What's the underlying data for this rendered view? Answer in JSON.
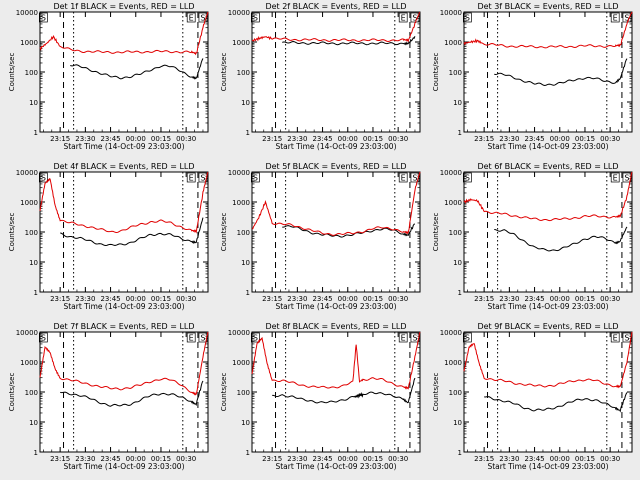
{
  "figure": {
    "x_tick_labels": [
      "23:15",
      "23:30",
      "23:45",
      "00:00",
      "00:15",
      "00:30"
    ],
    "x_axis_title": "Start Time (14-Oct-09 23:03:00)",
    "y_axis_title": "Counts/sec",
    "y_tick_labels": [
      "1",
      "10",
      "100",
      "1000",
      "10000"
    ],
    "series_colors": {
      "events": "#000000",
      "lld": "#e00000"
    },
    "marker_labels": [
      "S",
      "E",
      "S"
    ]
  },
  "chart_data": [
    {
      "type": "line",
      "title": "Det 1f BLACK = Events, RED = LLD",
      "xlabel": "Start Time (14-Oct-09 23:03:00)",
      "ylabel": "Counts/sec",
      "ylim": [
        1,
        10000
      ],
      "yscale": "log",
      "x_minutes": [
        0,
        4,
        8,
        12,
        18,
        24,
        30,
        36,
        42,
        48,
        54,
        60,
        66,
        72,
        78,
        84,
        90,
        93,
        97,
        100
      ],
      "series": [
        {
          "name": "Events",
          "values": [
            null,
            null,
            null,
            null,
            170,
            150,
            120,
            90,
            70,
            65,
            70,
            85,
            120,
            160,
            150,
            110,
            70,
            60,
            300,
            null
          ]
        },
        {
          "name": "LLD",
          "values": [
            600,
            900,
            1500,
            700,
            550,
            500,
            480,
            460,
            460,
            460,
            460,
            470,
            480,
            480,
            480,
            470,
            450,
            400,
            3000,
            10000
          ]
        }
      ]
    },
    {
      "type": "line",
      "title": "Det 2f BLACK = Events, RED = LLD",
      "xlabel": "Start Time (14-Oct-09 23:03:00)",
      "ylabel": "Counts/sec",
      "ylim": [
        1,
        10000
      ],
      "yscale": "log",
      "x_minutes": [
        0,
        4,
        8,
        12,
        18,
        24,
        30,
        36,
        42,
        48,
        54,
        60,
        66,
        72,
        78,
        84,
        90,
        93,
        97,
        100
      ],
      "series": [
        {
          "name": "Events",
          "values": [
            null,
            null,
            null,
            null,
            950,
            940,
            930,
            920,
            910,
            900,
            900,
            900,
            900,
            900,
            900,
            900,
            900,
            880,
            1500,
            null
          ]
        },
        {
          "name": "LLD",
          "values": [
            1100,
            1300,
            1500,
            1300,
            1250,
            1200,
            1200,
            1180,
            1170,
            1160,
            1150,
            1150,
            1150,
            1150,
            1150,
            1150,
            1150,
            1100,
            4000,
            10000
          ]
        }
      ]
    },
    {
      "type": "line",
      "title": "Det 3f BLACK = Events, RED = LLD",
      "xlabel": "Start Time (14-Oct-09 23:03:00)",
      "ylabel": "Counts/sec",
      "ylim": [
        1,
        10000
      ],
      "yscale": "log",
      "x_minutes": [
        0,
        4,
        8,
        12,
        18,
        24,
        30,
        36,
        42,
        48,
        54,
        60,
        66,
        72,
        78,
        84,
        90,
        93,
        97,
        100
      ],
      "series": [
        {
          "name": "Events",
          "values": [
            null,
            null,
            null,
            null,
            90,
            80,
            65,
            50,
            40,
            38,
            40,
            45,
            55,
            65,
            60,
            50,
            45,
            60,
            300,
            null
          ]
        },
        {
          "name": "LLD",
          "values": [
            900,
            1000,
            1100,
            850,
            800,
            750,
            720,
            700,
            700,
            690,
            690,
            700,
            720,
            740,
            740,
            730,
            720,
            750,
            4000,
            10000
          ]
        }
      ]
    },
    {
      "type": "line",
      "title": "Det 4f BLACK = Events, RED = LLD",
      "xlabel": "Start Time (14-Oct-09 23:03:00)",
      "ylabel": "Counts/sec",
      "ylim": [
        1,
        10000
      ],
      "yscale": "log",
      "x_minutes": [
        0,
        3,
        6,
        9,
        12,
        18,
        24,
        30,
        36,
        42,
        48,
        54,
        60,
        66,
        72,
        78,
        84,
        90,
        93,
        97,
        100
      ],
      "series": [
        {
          "name": "Events",
          "values": [
            null,
            null,
            null,
            null,
            90,
            70,
            60,
            50,
            40,
            35,
            38,
            45,
            60,
            80,
            90,
            80,
            60,
            50,
            45,
            300,
            null
          ]
        },
        {
          "name": "LLD",
          "values": [
            500,
            4000,
            6000,
            800,
            250,
            200,
            170,
            150,
            120,
            100,
            110,
            140,
            180,
            220,
            230,
            200,
            150,
            110,
            100,
            2000,
            10000
          ]
        }
      ]
    },
    {
      "type": "line",
      "title": "Det 5f BLACK = Events, RED = LLD",
      "xlabel": "Start Time (14-Oct-09 23:03:00)",
      "ylabel": "Counts/sec",
      "ylim": [
        1,
        10000
      ],
      "yscale": "log",
      "x_minutes": [
        0,
        4,
        8,
        12,
        18,
        24,
        30,
        36,
        42,
        48,
        54,
        60,
        66,
        72,
        78,
        84,
        90,
        93,
        97,
        100
      ],
      "series": [
        {
          "name": "Events",
          "values": [
            null,
            null,
            null,
            null,
            160,
            150,
            120,
            95,
            80,
            75,
            75,
            80,
            95,
            115,
            125,
            115,
            90,
            80,
            200,
            null
          ]
        },
        {
          "name": "LLD",
          "values": [
            120,
            300,
            1000,
            200,
            180,
            170,
            140,
            110,
            90,
            85,
            85,
            90,
            105,
            130,
            140,
            130,
            100,
            90,
            2500,
            10000
          ]
        }
      ]
    },
    {
      "type": "line",
      "title": "Det 6f BLACK = Events, RED = LLD",
      "xlabel": "Start Time (14-Oct-09 23:03:00)",
      "ylabel": "Counts/sec",
      "ylim": [
        1,
        10000
      ],
      "yscale": "log",
      "x_minutes": [
        0,
        4,
        8,
        12,
        18,
        24,
        30,
        36,
        42,
        48,
        54,
        60,
        66,
        72,
        78,
        84,
        90,
        93,
        97,
        100
      ],
      "series": [
        {
          "name": "Events",
          "values": [
            null,
            null,
            null,
            null,
            120,
            110,
            80,
            50,
            30,
            25,
            25,
            30,
            40,
            60,
            70,
            60,
            45,
            50,
            150,
            null
          ]
        },
        {
          "name": "LLD",
          "values": [
            1000,
            1200,
            1100,
            500,
            420,
            400,
            350,
            300,
            270,
            260,
            260,
            270,
            300,
            330,
            340,
            330,
            310,
            330,
            1500,
            10000
          ]
        }
      ]
    },
    {
      "type": "line",
      "title": "Det 7f BLACK = Events, RED = LLD",
      "xlabel": "Start Time (14-Oct-09 23:03:00)",
      "ylabel": "Counts/sec",
      "ylim": [
        1,
        10000
      ],
      "yscale": "log",
      "x_minutes": [
        0,
        3,
        6,
        9,
        12,
        18,
        24,
        30,
        36,
        42,
        48,
        54,
        60,
        66,
        72,
        78,
        84,
        90,
        93,
        97,
        100
      ],
      "series": [
        {
          "name": "Events",
          "values": [
            null,
            null,
            null,
            null,
            100,
            90,
            75,
            60,
            45,
            35,
            35,
            40,
            55,
            75,
            90,
            85,
            65,
            50,
            40,
            250,
            null
          ]
        },
        {
          "name": "LLD",
          "values": [
            300,
            3000,
            2000,
            600,
            300,
            250,
            210,
            180,
            150,
            130,
            130,
            140,
            170,
            230,
            270,
            250,
            180,
            100,
            80,
            1500,
            10000
          ]
        }
      ]
    },
    {
      "type": "line",
      "title": "Det 8f BLACK = Events, RED = LLD",
      "xlabel": "Start Time (14-Oct-09 23:03:00)",
      "ylabel": "Counts/sec",
      "ylim": [
        1,
        10000
      ],
      "yscale": "log",
      "x_minutes": [
        0,
        3,
        6,
        9,
        12,
        18,
        24,
        30,
        36,
        42,
        48,
        54,
        60,
        62,
        64,
        66,
        72,
        78,
        84,
        90,
        93,
        97,
        100
      ],
      "series": [
        {
          "name": "Events",
          "values": [
            null,
            null,
            null,
            null,
            70,
            80,
            70,
            55,
            50,
            45,
            45,
            55,
            70,
            70,
            80,
            80,
            100,
            90,
            70,
            60,
            45,
            300,
            null
          ]
        },
        {
          "name": "LLD",
          "values": [
            400,
            4000,
            6000,
            900,
            250,
            240,
            200,
            170,
            150,
            140,
            145,
            160,
            210,
            4000,
            220,
            260,
            290,
            250,
            190,
            150,
            130,
            1500,
            10000
          ]
        }
      ]
    },
    {
      "type": "line",
      "title": "Det 9f BLACK = Events, RED = LLD",
      "xlabel": "Start Time (14-Oct-09 23:03:00)",
      "ylabel": "Counts/sec",
      "ylim": [
        1,
        10000
      ],
      "yscale": "log",
      "x_minutes": [
        0,
        3,
        6,
        9,
        12,
        18,
        24,
        30,
        36,
        42,
        48,
        54,
        60,
        66,
        72,
        78,
        84,
        90,
        93,
        97,
        100
      ],
      "series": [
        {
          "name": "Events",
          "values": [
            null,
            null,
            null,
            null,
            70,
            60,
            50,
            40,
            30,
            25,
            25,
            30,
            40,
            50,
            60,
            55,
            40,
            30,
            25,
            100,
            null
          ]
        },
        {
          "name": "LLD",
          "values": [
            500,
            3000,
            4000,
            900,
            300,
            260,
            230,
            200,
            180,
            160,
            160,
            170,
            200,
            240,
            260,
            240,
            190,
            160,
            150,
            1000,
            10000
          ]
        }
      ]
    }
  ]
}
